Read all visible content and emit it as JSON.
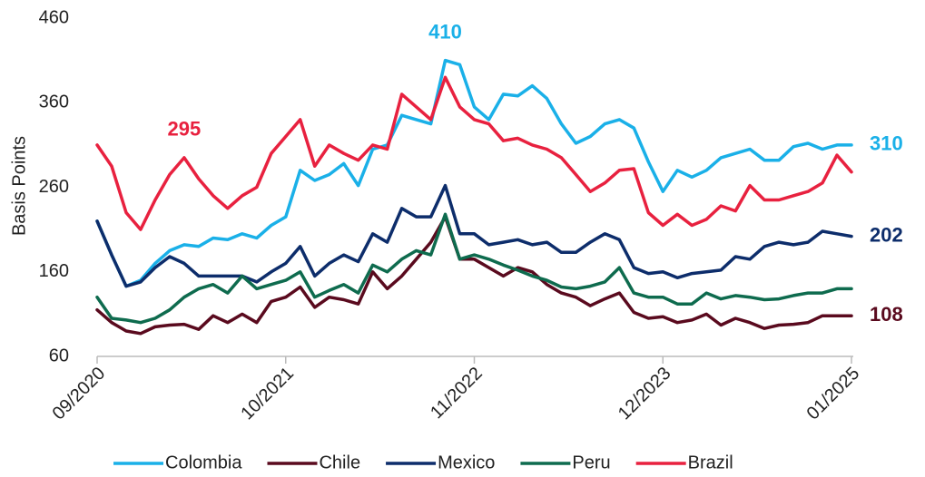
{
  "chart_data": {
    "type": "line",
    "y_label": "Basis Points",
    "x": [
      "09/2020",
      "10/2020",
      "11/2020",
      "12/2020",
      "01/2021",
      "02/2021",
      "03/2021",
      "04/2021",
      "05/2021",
      "06/2021",
      "07/2021",
      "08/2021",
      "09/2021",
      "10/2021",
      "11/2021",
      "12/2021",
      "01/2022",
      "02/2022",
      "03/2022",
      "04/2022",
      "05/2022",
      "06/2022",
      "07/2022",
      "08/2022",
      "09/2022",
      "10/2022",
      "11/2022",
      "12/2022",
      "01/2023",
      "02/2023",
      "03/2023",
      "04/2023",
      "05/2023",
      "06/2023",
      "07/2023",
      "08/2023",
      "09/2023",
      "10/2023",
      "11/2023",
      "12/2023",
      "01/2024",
      "02/2024",
      "03/2024",
      "04/2024",
      "05/2024",
      "06/2024",
      "07/2024",
      "08/2024",
      "09/2024",
      "10/2024",
      "11/2024",
      "12/2024",
      "01/2025"
    ],
    "xticks": [
      "09/2020",
      "10/2021",
      "11/2022",
      "12/2023",
      "01/2025"
    ],
    "ylim": [
      60,
      460
    ],
    "yticks": [
      60,
      160,
      260,
      360,
      460
    ],
    "grid": false,
    "series": [
      {
        "name": "Colombia",
        "color": "#1ab0e8",
        "values": [
          220,
          180,
          143,
          150,
          170,
          185,
          192,
          190,
          200,
          198,
          205,
          200,
          215,
          225,
          280,
          268,
          275,
          288,
          262,
          305,
          310,
          345,
          340,
          335,
          410,
          405,
          355,
          340,
          370,
          368,
          380,
          365,
          335,
          312,
          320,
          335,
          340,
          330,
          290,
          255,
          280,
          272,
          280,
          295,
          300,
          305,
          292,
          292,
          308,
          312,
          305,
          310,
          310
        ],
        "value_labels": [
          null,
          null,
          null,
          null,
          null,
          null,
          null,
          null,
          null,
          null,
          null,
          null,
          null,
          null,
          null,
          null,
          null,
          null,
          null,
          null,
          null,
          null,
          null,
          null,
          "410",
          null,
          null,
          null,
          null,
          null,
          null,
          null,
          null,
          null,
          null,
          null,
          null,
          null,
          null,
          null,
          null,
          null,
          null,
          null,
          null,
          null,
          null,
          null,
          null,
          null,
          null,
          null,
          "310"
        ]
      },
      {
        "name": "Chile",
        "color": "#5a0a1e",
        "values": [
          115,
          100,
          90,
          87,
          95,
          97,
          98,
          92,
          108,
          100,
          110,
          100,
          125,
          130,
          142,
          118,
          130,
          127,
          122,
          160,
          140,
          155,
          175,
          195,
          225,
          175,
          175,
          165,
          155,
          165,
          160,
          145,
          135,
          130,
          120,
          128,
          135,
          112,
          105,
          107,
          100,
          103,
          110,
          97,
          105,
          100,
          93,
          97,
          98,
          100,
          108,
          108,
          108
        ],
        "value_labels": [
          null,
          null,
          null,
          null,
          null,
          null,
          null,
          null,
          null,
          null,
          null,
          null,
          null,
          null,
          null,
          null,
          null,
          null,
          null,
          null,
          null,
          null,
          null,
          null,
          null,
          null,
          null,
          null,
          null,
          null,
          null,
          null,
          null,
          null,
          null,
          null,
          null,
          null,
          null,
          null,
          null,
          null,
          null,
          null,
          null,
          null,
          null,
          null,
          null,
          null,
          null,
          null,
          "108"
        ]
      },
      {
        "name": "Mexico",
        "color": "#0d2d6b",
        "values": [
          220,
          180,
          143,
          148,
          165,
          178,
          170,
          155,
          155,
          155,
          155,
          148,
          160,
          170,
          190,
          155,
          170,
          180,
          172,
          205,
          195,
          235,
          225,
          225,
          262,
          205,
          205,
          192,
          195,
          198,
          192,
          195,
          183,
          183,
          195,
          205,
          198,
          165,
          158,
          160,
          153,
          158,
          160,
          162,
          178,
          175,
          190,
          195,
          192,
          195,
          208,
          205,
          202
        ],
        "value_labels": [
          null,
          null,
          null,
          null,
          null,
          null,
          null,
          null,
          null,
          null,
          null,
          null,
          null,
          null,
          null,
          null,
          null,
          null,
          null,
          null,
          null,
          null,
          null,
          null,
          null,
          null,
          null,
          null,
          null,
          null,
          null,
          null,
          null,
          null,
          null,
          null,
          null,
          null,
          null,
          null,
          null,
          null,
          null,
          null,
          null,
          null,
          null,
          null,
          null,
          null,
          null,
          null,
          "202"
        ]
      },
      {
        "name": "Peru",
        "color": "#0e6b4e",
        "values": [
          130,
          105,
          103,
          100,
          105,
          115,
          130,
          140,
          145,
          135,
          155,
          140,
          145,
          150,
          160,
          130,
          138,
          145,
          135,
          168,
          160,
          175,
          185,
          180,
          228,
          175,
          180,
          175,
          168,
          162,
          155,
          150,
          142,
          140,
          143,
          148,
          165,
          135,
          130,
          130,
          122,
          122,
          135,
          128,
          132,
          130,
          127,
          128,
          132,
          135,
          135,
          140,
          140
        ]
      },
      {
        "name": "Brazil",
        "color": "#e8213f",
        "values": [
          310,
          285,
          230,
          210,
          245,
          275,
          295,
          270,
          250,
          235,
          250,
          260,
          300,
          320,
          340,
          285,
          310,
          300,
          292,
          310,
          305,
          370,
          355,
          340,
          390,
          355,
          340,
          335,
          315,
          318,
          310,
          305,
          295,
          275,
          255,
          265,
          280,
          282,
          230,
          215,
          228,
          215,
          222,
          238,
          232,
          262,
          245,
          245,
          250,
          255,
          265,
          298,
          278
        ],
        "value_labels": [
          null,
          null,
          null,
          null,
          null,
          null,
          "295",
          null,
          null,
          null,
          null,
          null,
          null,
          null,
          null,
          null,
          null,
          null,
          null,
          null,
          null,
          null,
          null,
          null,
          null,
          null,
          null,
          null,
          null,
          null,
          null,
          null,
          null,
          null,
          null,
          null,
          null,
          null,
          null,
          null,
          null,
          null,
          null,
          null,
          null,
          null,
          null,
          null,
          null,
          null,
          null,
          null,
          null
        ]
      }
    ]
  }
}
